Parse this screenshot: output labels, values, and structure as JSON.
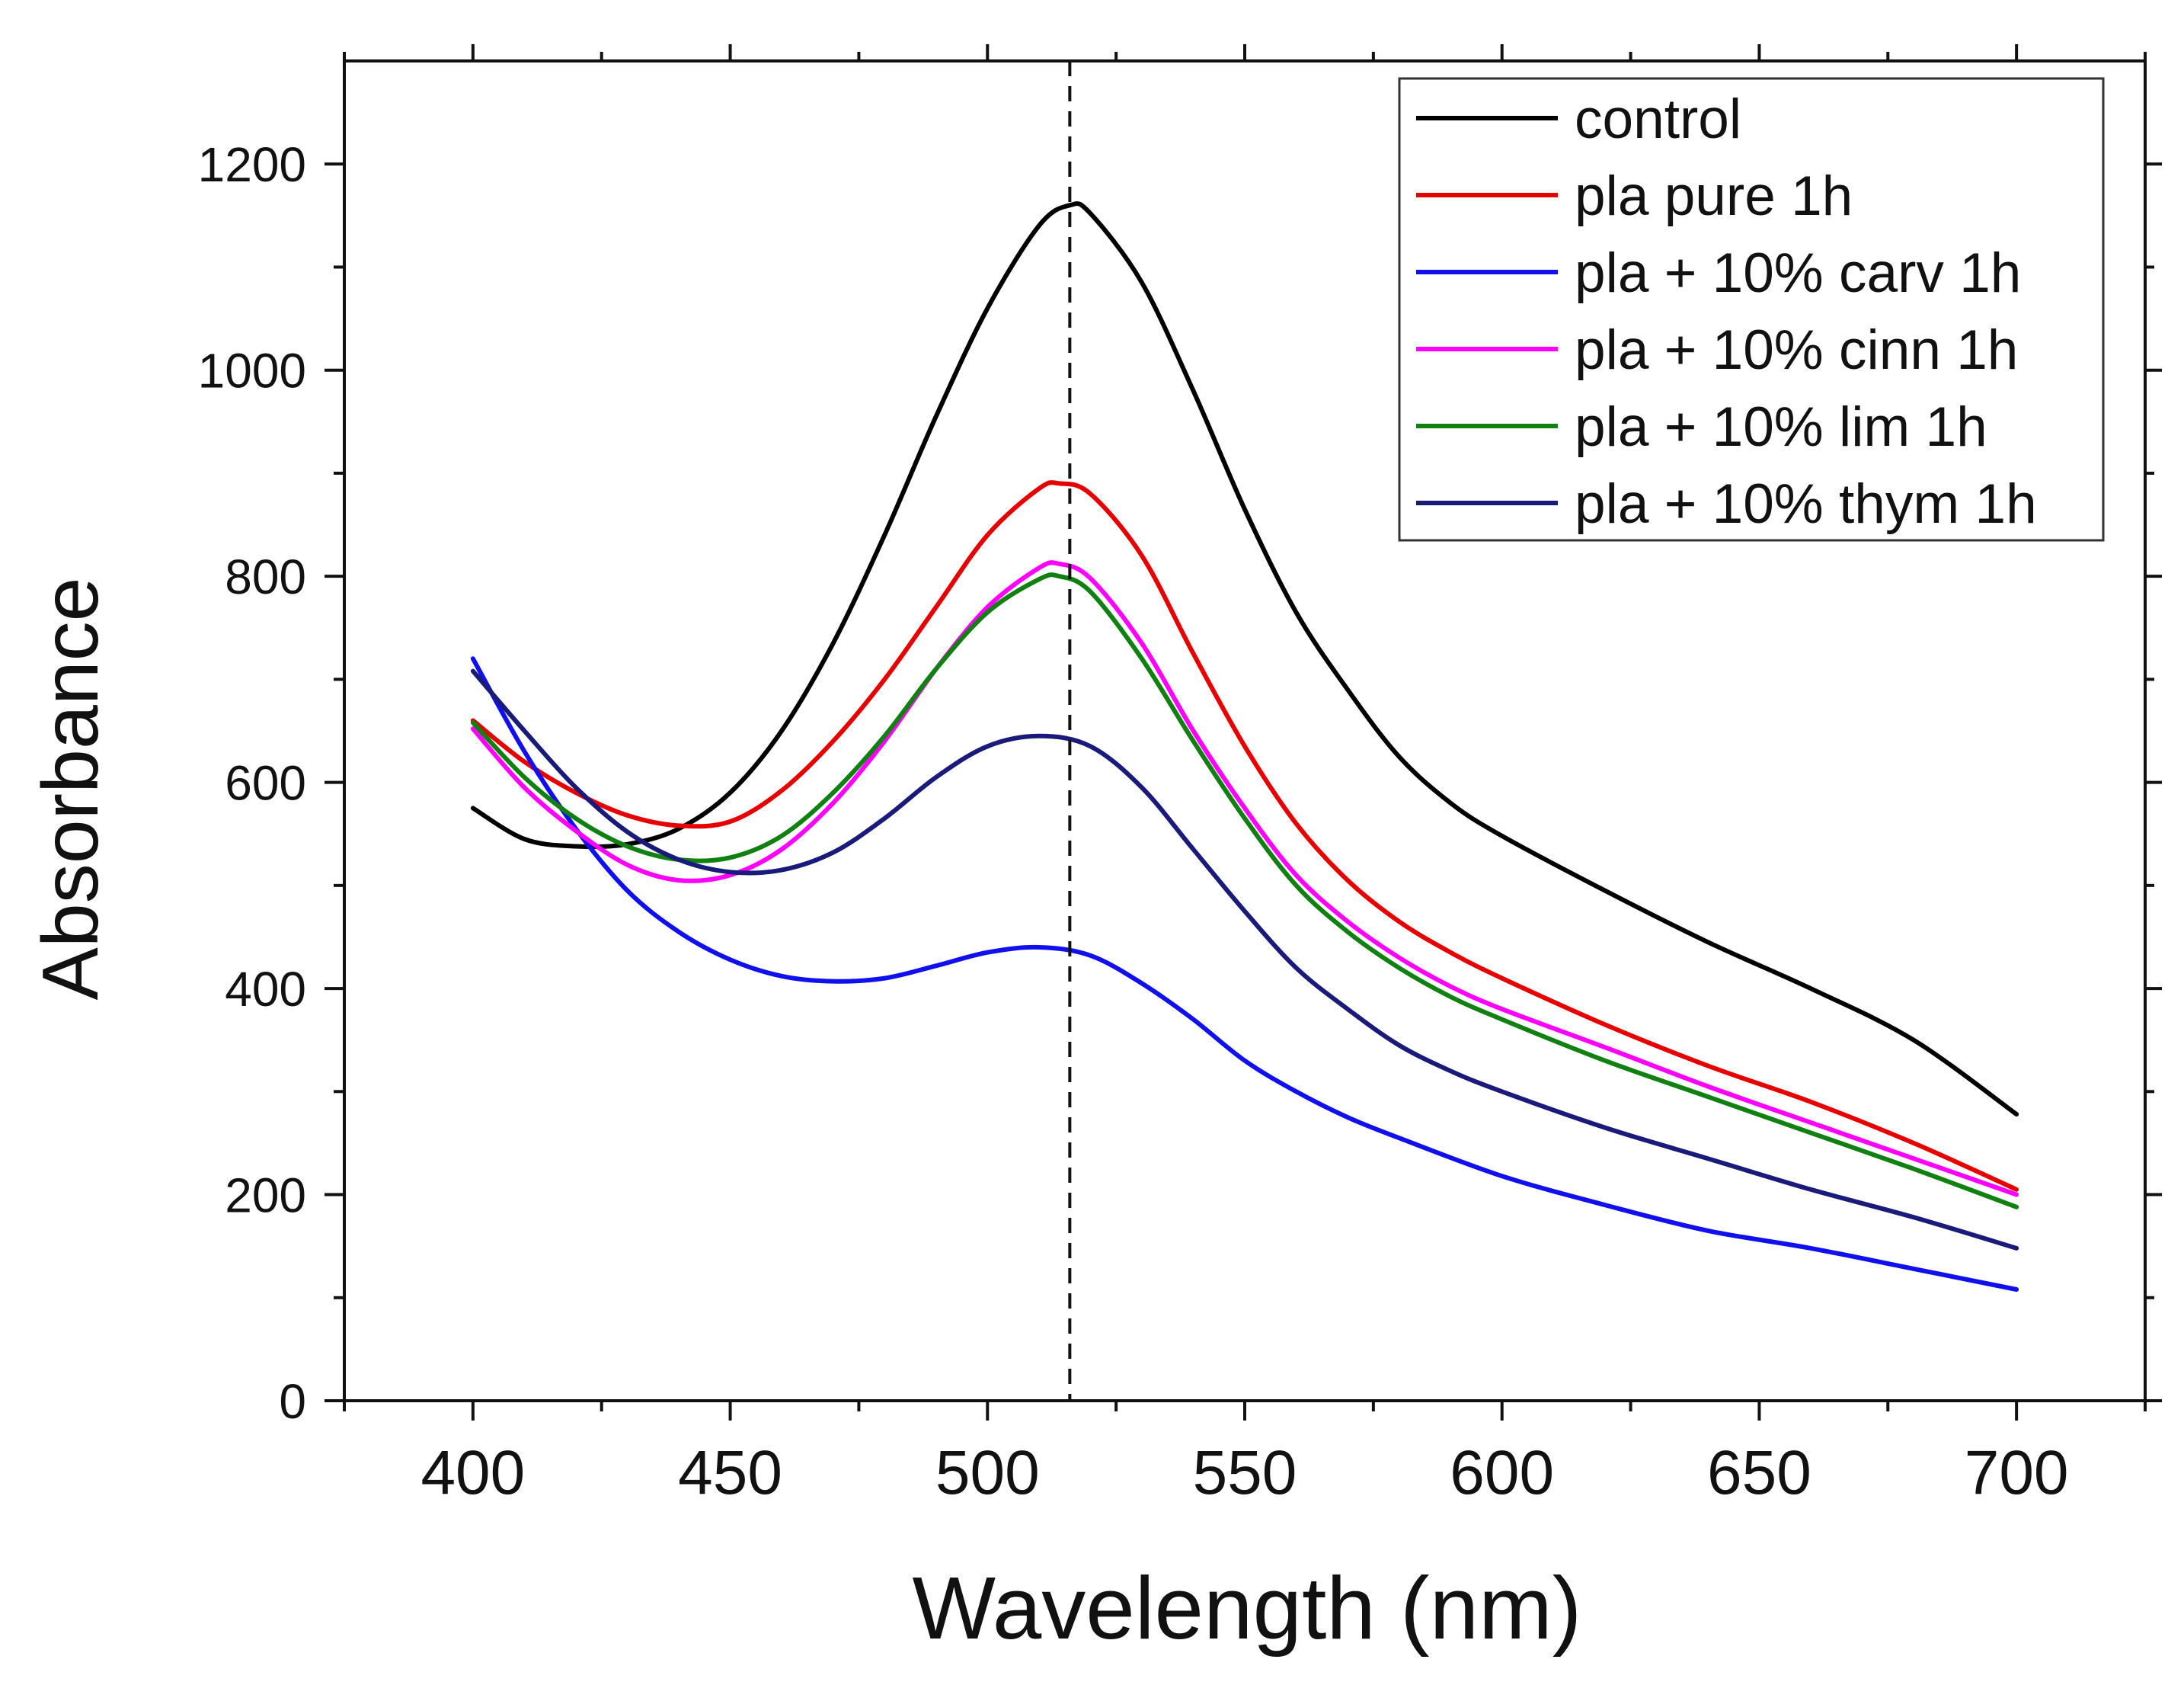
{
  "chart_data": {
    "type": "line",
    "title": "",
    "xlabel": "Wavelength (nm)",
    "ylabel": "Absorbance",
    "xlim": [
      375,
      725
    ],
    "ylim": [
      0,
      1300
    ],
    "x_ticks": [
      400,
      450,
      500,
      550,
      600,
      650,
      700
    ],
    "y_ticks": [
      0,
      200,
      400,
      600,
      800,
      1000,
      1200
    ],
    "x_tick_labels": [
      "400",
      "450",
      "500",
      "550",
      "600",
      "650",
      "700"
    ],
    "y_tick_labels": [
      "0",
      "200",
      "400",
      "600",
      "800",
      "1000",
      "1200"
    ],
    "reference_line": {
      "x": 516,
      "style": "dashed",
      "color": "#111111"
    },
    "grid": false,
    "legend_position": "top-right",
    "series": [
      {
        "name": "control",
        "color": "#000000",
        "x": [
          400,
          410,
          420,
          430,
          440,
          450,
          460,
          470,
          480,
          490,
          500,
          510,
          516,
          520,
          530,
          540,
          550,
          560,
          570,
          580,
          590,
          600,
          620,
          640,
          660,
          680,
          700
        ],
        "y": [
          575,
          545,
          538,
          540,
          555,
          590,
          650,
          735,
          840,
          955,
          1060,
          1140,
          1160,
          1152,
          1085,
          980,
          865,
          765,
          690,
          625,
          580,
          548,
          495,
          445,
          400,
          350,
          278
        ]
      },
      {
        "name": "pla pure 1h",
        "color": "#e60000",
        "x": [
          400,
          410,
          420,
          430,
          440,
          450,
          460,
          470,
          480,
          490,
          500,
          510,
          514,
          520,
          530,
          540,
          550,
          560,
          570,
          580,
          590,
          600,
          620,
          640,
          660,
          680,
          700
        ],
        "y": [
          660,
          620,
          590,
          568,
          558,
          562,
          592,
          640,
          700,
          770,
          840,
          885,
          890,
          880,
          820,
          725,
          635,
          560,
          505,
          465,
          435,
          410,
          365,
          325,
          290,
          250,
          205
        ]
      },
      {
        "name": "pla + 10% carv 1h",
        "color": "#1010ee",
        "x": [
          400,
          410,
          420,
          430,
          440,
          450,
          460,
          470,
          480,
          490,
          500,
          510,
          520,
          530,
          540,
          550,
          560,
          570,
          580,
          600,
          620,
          640,
          660,
          680,
          700
        ],
        "y": [
          720,
          630,
          555,
          495,
          455,
          428,
          412,
          407,
          410,
          422,
          435,
          440,
          432,
          405,
          370,
          330,
          300,
          275,
          255,
          218,
          190,
          165,
          148,
          128,
          108
        ]
      },
      {
        "name": "pla + 10% cinn 1h",
        "color": "#ff00ff",
        "x": [
          400,
          410,
          420,
          430,
          440,
          450,
          460,
          470,
          480,
          490,
          500,
          510,
          514,
          520,
          530,
          540,
          550,
          560,
          570,
          580,
          590,
          600,
          620,
          640,
          660,
          680,
          700
        ],
        "y": [
          652,
          595,
          553,
          520,
          505,
          510,
          535,
          580,
          640,
          710,
          770,
          808,
          812,
          798,
          735,
          650,
          575,
          510,
          465,
          430,
          402,
          380,
          343,
          305,
          270,
          235,
          200
        ]
      },
      {
        "name": "pla + 10% lim 1h",
        "color": "#108010",
        "x": [
          400,
          410,
          420,
          430,
          440,
          450,
          460,
          470,
          480,
          490,
          500,
          510,
          514,
          520,
          530,
          540,
          550,
          560,
          570,
          580,
          590,
          600,
          620,
          640,
          660,
          680,
          700
        ],
        "y": [
          658,
          605,
          565,
          538,
          525,
          527,
          548,
          590,
          645,
          710,
          765,
          797,
          800,
          785,
          720,
          640,
          565,
          500,
          455,
          420,
          392,
          370,
          330,
          295,
          260,
          225,
          188
        ]
      },
      {
        "name": "pla + 10% thym 1h",
        "color": "#1a1a7a",
        "x": [
          400,
          410,
          420,
          430,
          440,
          450,
          460,
          470,
          480,
          490,
          500,
          510,
          520,
          530,
          540,
          550,
          560,
          570,
          580,
          590,
          600,
          620,
          640,
          660,
          680,
          700
        ],
        "y": [
          708,
          650,
          595,
          552,
          525,
          513,
          515,
          532,
          565,
          605,
          635,
          645,
          635,
          595,
          535,
          475,
          420,
          380,
          345,
          320,
          300,
          265,
          235,
          205,
          178,
          148
        ]
      }
    ]
  }
}
